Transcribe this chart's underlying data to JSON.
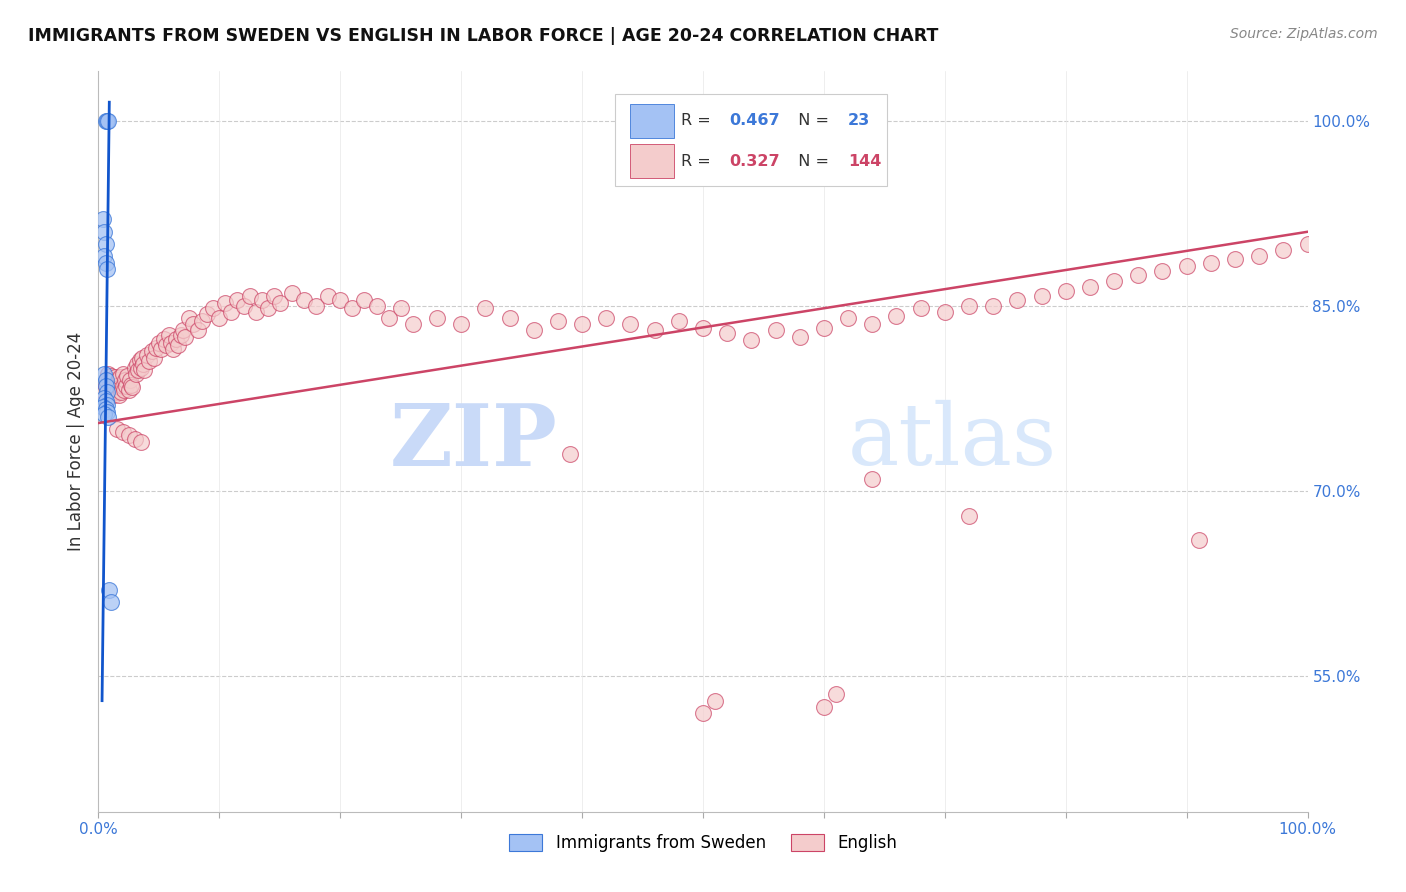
{
  "title": "IMMIGRANTS FROM SWEDEN VS ENGLISH IN LABOR FORCE | AGE 20-24 CORRELATION CHART",
  "source": "Source: ZipAtlas.com",
  "ylabel": "In Labor Force | Age 20-24",
  "xlim": [
    0.0,
    1.0
  ],
  "ylim": [
    0.44,
    1.04
  ],
  "y_ticks_right": [
    0.55,
    0.7,
    0.85,
    1.0
  ],
  "y_tick_labels_right": [
    "55.0%",
    "70.0%",
    "85.0%",
    "100.0%"
  ],
  "blue_color": "#a4c2f4",
  "blue_edge_color": "#3c78d8",
  "pink_color": "#f4cccc",
  "pink_edge_color": "#cc4466",
  "blue_line_color": "#1155cc",
  "pink_line_color": "#cc4466",
  "watermark_color": "#c9daf8",
  "tick_label_color": "#3c78d8",
  "blue_x": [
    0.006,
    0.007,
    0.008,
    0.004,
    0.005,
    0.006,
    0.005,
    0.006,
    0.007,
    0.005,
    0.006,
    0.006,
    0.007,
    0.005,
    0.006,
    0.007,
    0.004,
    0.006,
    0.007,
    0.005,
    0.008,
    0.009,
    0.01
  ],
  "blue_y": [
    1.0,
    1.0,
    1.0,
    0.92,
    0.91,
    0.9,
    0.89,
    0.885,
    0.88,
    0.795,
    0.79,
    0.785,
    0.78,
    0.775,
    0.773,
    0.77,
    0.768,
    0.766,
    0.764,
    0.762,
    0.76,
    0.62,
    0.61
  ],
  "pink_x": [
    0.005,
    0.006,
    0.007,
    0.008,
    0.008,
    0.009,
    0.009,
    0.01,
    0.01,
    0.011,
    0.011,
    0.012,
    0.012,
    0.013,
    0.013,
    0.014,
    0.014,
    0.015,
    0.015,
    0.016,
    0.016,
    0.017,
    0.017,
    0.018,
    0.018,
    0.019,
    0.02,
    0.02,
    0.021,
    0.022,
    0.023,
    0.024,
    0.025,
    0.026,
    0.027,
    0.028,
    0.03,
    0.031,
    0.032,
    0.033,
    0.034,
    0.035,
    0.036,
    0.037,
    0.038,
    0.04,
    0.042,
    0.044,
    0.046,
    0.048,
    0.05,
    0.052,
    0.054,
    0.056,
    0.058,
    0.06,
    0.062,
    0.064,
    0.066,
    0.068,
    0.07,
    0.072,
    0.075,
    0.078,
    0.082,
    0.086,
    0.09,
    0.095,
    0.1,
    0.105,
    0.11,
    0.115,
    0.12,
    0.125,
    0.13,
    0.135,
    0.14,
    0.145,
    0.15,
    0.16,
    0.17,
    0.18,
    0.19,
    0.2,
    0.21,
    0.22,
    0.23,
    0.24,
    0.25,
    0.26,
    0.28,
    0.3,
    0.32,
    0.34,
    0.36,
    0.38,
    0.4,
    0.42,
    0.44,
    0.46,
    0.48,
    0.5,
    0.52,
    0.54,
    0.56,
    0.58,
    0.6,
    0.62,
    0.64,
    0.66,
    0.68,
    0.7,
    0.72,
    0.74,
    0.76,
    0.78,
    0.8,
    0.82,
    0.84,
    0.86,
    0.88,
    0.9,
    0.92,
    0.94,
    0.96,
    0.98,
    1.0,
    0.015,
    0.02,
    0.025,
    0.03,
    0.035,
    0.39,
    0.5,
    0.51,
    0.6,
    0.61,
    0.64,
    0.72,
    0.91
  ],
  "pink_y": [
    0.78,
    0.785,
    0.79,
    0.775,
    0.795,
    0.78,
    0.79,
    0.785,
    0.793,
    0.78,
    0.788,
    0.782,
    0.79,
    0.778,
    0.786,
    0.784,
    0.792,
    0.78,
    0.788,
    0.782,
    0.79,
    0.778,
    0.786,
    0.784,
    0.792,
    0.78,
    0.785,
    0.795,
    0.782,
    0.79,
    0.785,
    0.793,
    0.782,
    0.79,
    0.786,
    0.784,
    0.8,
    0.795,
    0.803,
    0.798,
    0.806,
    0.8,
    0.808,
    0.803,
    0.798,
    0.81,
    0.805,
    0.813,
    0.808,
    0.816,
    0.82,
    0.815,
    0.823,
    0.818,
    0.826,
    0.82,
    0.815,
    0.823,
    0.818,
    0.826,
    0.83,
    0.825,
    0.84,
    0.835,
    0.83,
    0.838,
    0.843,
    0.848,
    0.84,
    0.852,
    0.845,
    0.855,
    0.85,
    0.858,
    0.845,
    0.855,
    0.848,
    0.858,
    0.852,
    0.86,
    0.855,
    0.85,
    0.858,
    0.855,
    0.848,
    0.855,
    0.85,
    0.84,
    0.848,
    0.835,
    0.84,
    0.835,
    0.848,
    0.84,
    0.83,
    0.838,
    0.835,
    0.84,
    0.835,
    0.83,
    0.838,
    0.832,
    0.828,
    0.822,
    0.83,
    0.825,
    0.832,
    0.84,
    0.835,
    0.842,
    0.848,
    0.845,
    0.85,
    0.85,
    0.855,
    0.858,
    0.862,
    0.865,
    0.87,
    0.875,
    0.878,
    0.882,
    0.885,
    0.888,
    0.89,
    0.895,
    0.9,
    0.75,
    0.748,
    0.745,
    0.742,
    0.74,
    0.73,
    0.52,
    0.53,
    0.525,
    0.535,
    0.71,
    0.68,
    0.66
  ],
  "pink_line_x": [
    0.0,
    1.0
  ],
  "pink_line_y": [
    0.755,
    0.91
  ],
  "blue_line_x": [
    0.003,
    0.009
  ],
  "blue_line_y": [
    0.53,
    1.015
  ]
}
